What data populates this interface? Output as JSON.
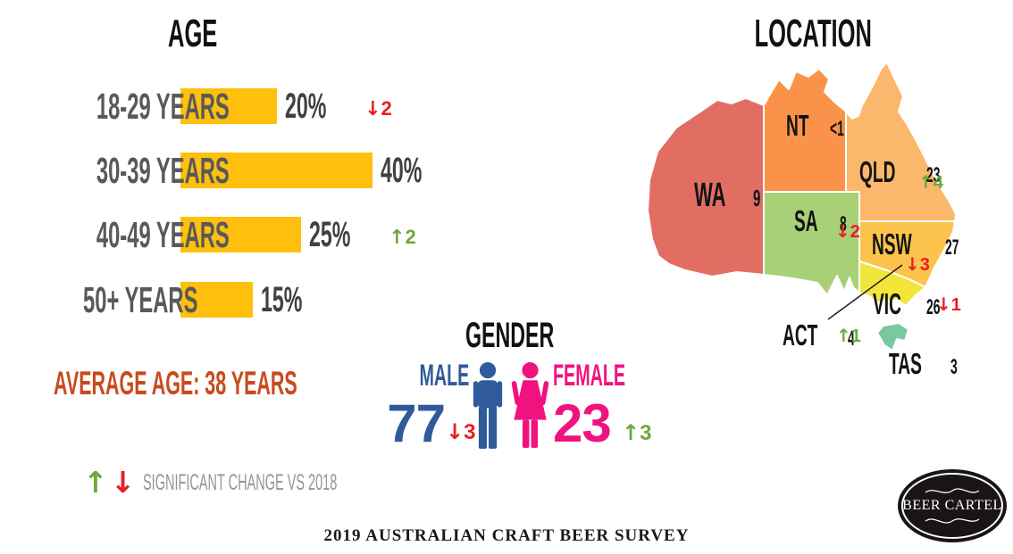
{
  "age": {
    "title": "AGE",
    "rows": [
      {
        "label": "18-29 YEARS",
        "value": 20,
        "value_label": "20%",
        "change_dir": "down",
        "change_value": "2"
      },
      {
        "label": "30-39 YEARS",
        "value": 40,
        "value_label": "40%",
        "change_dir": "",
        "change_value": ""
      },
      {
        "label": "40-49 YEARS",
        "value": 25,
        "value_label": "25%",
        "change_dir": "up",
        "change_value": "2"
      },
      {
        "label": "50+ YEARS",
        "value": 15,
        "value_label": "15%",
        "change_dir": "",
        "change_value": ""
      }
    ],
    "average_label": "AVERAGE AGE: 38 YEARS"
  },
  "gender": {
    "title": "GENDER",
    "male": {
      "label": "MALE",
      "value": "77",
      "change_dir": "down",
      "change_value": "3"
    },
    "female": {
      "label": "FEMALE",
      "value": "23",
      "change_dir": "up",
      "change_value": "3"
    }
  },
  "location": {
    "title": "LOCATION",
    "states": [
      {
        "name": "WA",
        "value": "9",
        "change_dir": "",
        "change_value": "",
        "color": "#E26E63"
      },
      {
        "name": "NT",
        "value": "<1",
        "change_dir": "",
        "change_value": "",
        "color": "#FA9349"
      },
      {
        "name": "QLD",
        "value": "23",
        "change_dir": "up",
        "change_value": "4",
        "color": "#FBB76B"
      },
      {
        "name": "SA",
        "value": "8",
        "change_dir": "down",
        "change_value": "2",
        "color": "#A8D077"
      },
      {
        "name": "NSW",
        "value": "27",
        "change_dir": "down",
        "change_value": "3",
        "color": "#FCC44D"
      },
      {
        "name": "VIC",
        "value": "26",
        "change_dir": "down",
        "change_value": "1",
        "color": "#F2E63B"
      },
      {
        "name": "ACT",
        "value": "4",
        "change_dir": "up",
        "change_value": "1",
        "color": ""
      },
      {
        "name": "TAS",
        "value": "3",
        "change_dir": "",
        "change_value": "",
        "color": "#79C8A0"
      }
    ]
  },
  "legend": {
    "label": "SIGNIFICANT CHANGE VS 2018"
  },
  "footer": {
    "title": "2019 AUSTRALIAN CRAFT BEER SURVEY"
  },
  "logo": {
    "text": "BEER CARTEL"
  },
  "colors": {
    "gold": "#FEC00D",
    "red": "#ED1C24",
    "green": "#6EA83D",
    "male_blue": "#2F5B9B",
    "female_pink": "#F0137F",
    "avg_orange": "#C94A1E",
    "label_gray": "#58595B",
    "value_gray": "#414042",
    "legend_gray": "#939598"
  },
  "chart_data": [
    {
      "type": "bar",
      "orientation": "horizontal",
      "title": "AGE",
      "categories": [
        "18-29 YEARS",
        "30-39 YEARS",
        "40-49 YEARS",
        "50+ YEARS"
      ],
      "values": [
        20,
        40,
        25,
        15
      ],
      "unit": "%",
      "changes_vs_2018": [
        -2,
        null,
        2,
        null
      ],
      "annotation": "AVERAGE AGE: 38 YEARS",
      "bar_color": "#FEC00D"
    },
    {
      "type": "pie",
      "title": "GENDER",
      "categories": [
        "MALE",
        "FEMALE"
      ],
      "values": [
        77,
        23
      ],
      "changes_vs_2018": [
        -3,
        3
      ],
      "colors": [
        "#2F5B9B",
        "#F0137F"
      ]
    },
    {
      "type": "heatmap",
      "title": "LOCATION",
      "note": "choropleth map of Australian states, % of respondents",
      "categories": [
        "WA",
        "NT",
        "QLD",
        "SA",
        "NSW",
        "VIC",
        "ACT",
        "TAS"
      ],
      "values": [
        "9",
        "<1",
        "23",
        "8",
        "27",
        "26",
        "4",
        "3"
      ],
      "changes_vs_2018": [
        null,
        null,
        4,
        -2,
        -3,
        -1,
        1,
        null
      ]
    }
  ]
}
